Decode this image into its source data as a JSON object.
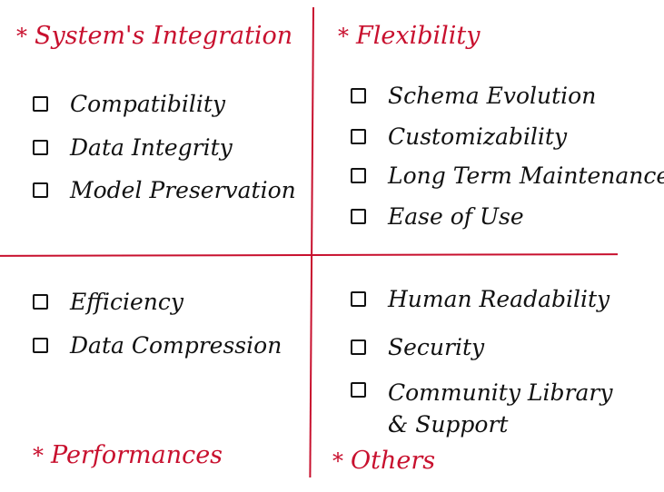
{
  "colors": {
    "accent": "#c8102e",
    "ink": "#111111",
    "background": "#ffffff"
  },
  "quadrants": {
    "top_left": {
      "heading": "System's Integration",
      "items": [
        "Compatibility",
        "Data Integrity",
        "Model Preservation"
      ]
    },
    "top_right": {
      "heading": "Flexibility",
      "items": [
        "Schema Evolution",
        "Customizability",
        "Long Term Maintenance",
        "Ease of Use"
      ]
    },
    "bottom_left": {
      "heading": "Performances",
      "items": [
        "Efficiency",
        "Data Compression"
      ]
    },
    "bottom_right": {
      "heading": "Others",
      "items": [
        "Human Readability",
        "Security",
        "Community Library & Support"
      ]
    }
  },
  "star_symbol": "*"
}
